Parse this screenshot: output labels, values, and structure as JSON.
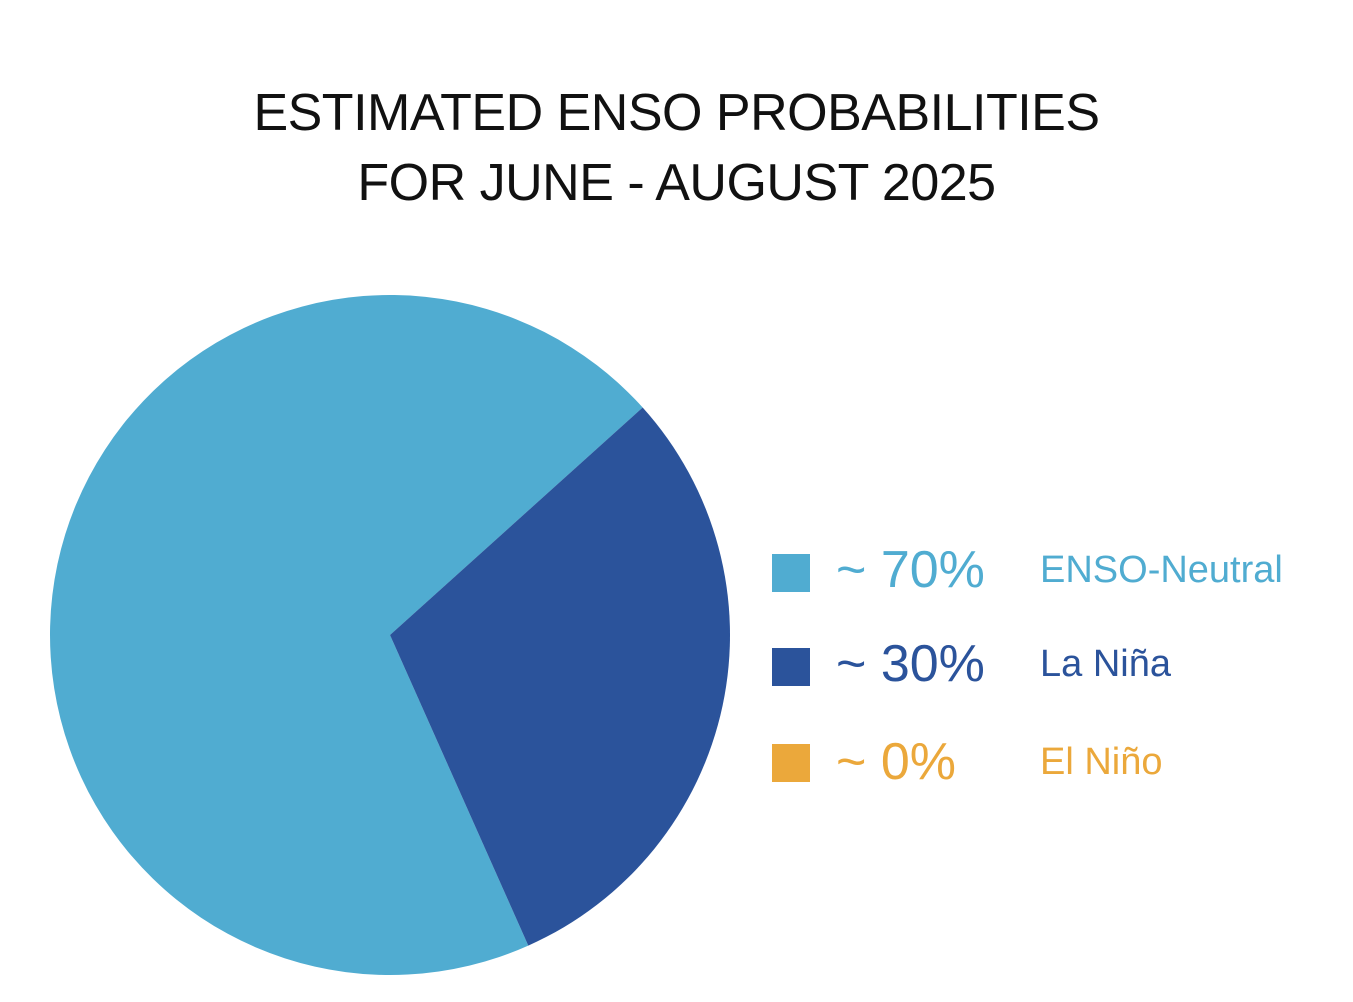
{
  "chart_data": {
    "type": "pie",
    "title_lines": [
      "ESTIMATED ENSO PROBABILITIES",
      "FOR JUNE - AUGUST 2025"
    ],
    "slices": [
      {
        "name": "ENSO-Neutral",
        "value": 70,
        "value_label": "~ 70%",
        "color": "#50acd1"
      },
      {
        "name": "La Niña",
        "value": 30,
        "value_label": "~ 30%",
        "color": "#2b539b"
      },
      {
        "name": "El Niño",
        "value": 0,
        "value_label": "~ 0%",
        "color": "#eba83b"
      }
    ],
    "legend_position": "right"
  }
}
